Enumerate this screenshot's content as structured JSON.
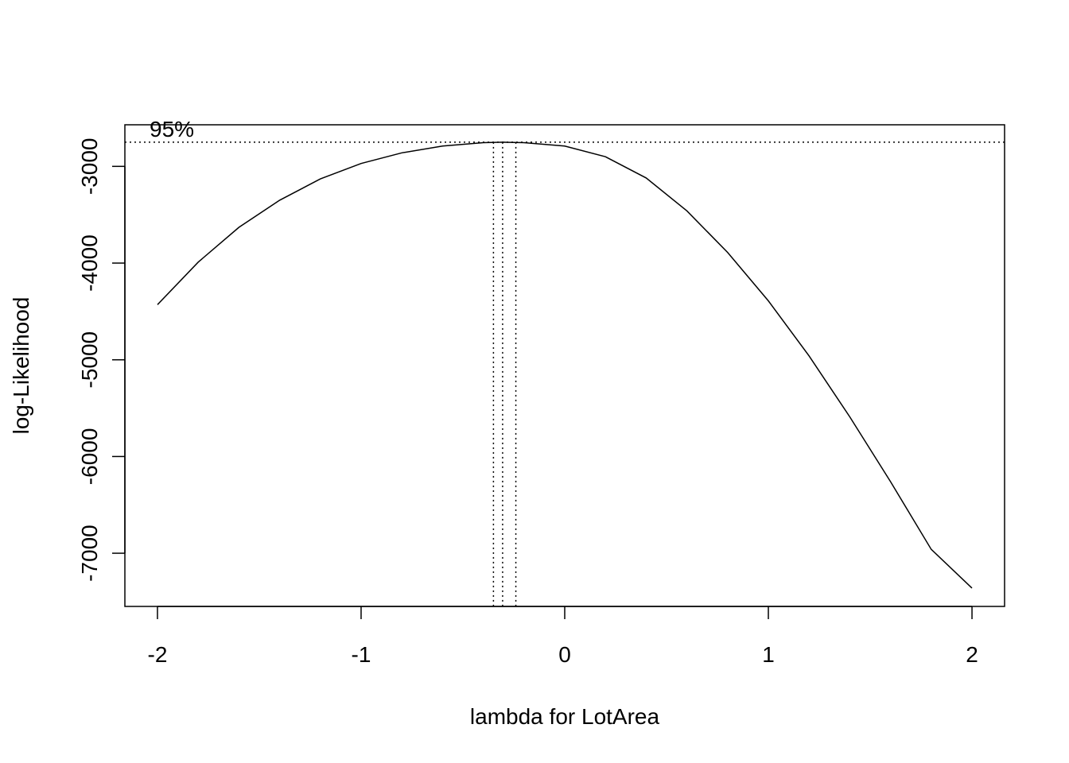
{
  "chart_data": {
    "type": "line",
    "title": "",
    "xlabel": "lambda for LotArea",
    "ylabel": "log-Likelihood",
    "xlim": [
      -2.16,
      2.16
    ],
    "ylim": [
      -7550,
      -2570
    ],
    "x_ticks": [
      {
        "value": -2,
        "label": "-2"
      },
      {
        "value": -1,
        "label": "-1"
      },
      {
        "value": 0,
        "label": "0"
      },
      {
        "value": 1,
        "label": "1"
      },
      {
        "value": 2,
        "label": "2"
      }
    ],
    "y_ticks": [
      {
        "value": -3000,
        "label": "-3000"
      },
      {
        "value": -4000,
        "label": "-4000"
      },
      {
        "value": -5000,
        "label": "-5000"
      },
      {
        "value": -6000,
        "label": "-6000"
      },
      {
        "value": -7000,
        "label": "-7000"
      }
    ],
    "series": [
      {
        "x": [
          -2.0,
          -1.8,
          -1.6,
          -1.4,
          -1.2,
          -1.0,
          -0.8,
          -0.6,
          -0.4,
          -0.3,
          -0.2,
          0.0,
          0.2,
          0.4,
          0.6,
          0.8,
          1.0,
          1.2,
          1.4,
          1.6,
          1.8,
          2.0
        ],
        "y": [
          -4430,
          -3990,
          -3630,
          -3350,
          -3130,
          -2970,
          -2860,
          -2790,
          -2755,
          -2750,
          -2755,
          -2790,
          -2900,
          -3120,
          -3460,
          -3890,
          -4390,
          -4960,
          -5590,
          -6260,
          -6960,
          -7360
        ]
      }
    ],
    "ci_threshold": -2750,
    "ci_label": "95%",
    "ci_lines_x": [
      -0.35,
      -0.305,
      -0.24
    ],
    "grid": false,
    "line_color": "#000000"
  }
}
